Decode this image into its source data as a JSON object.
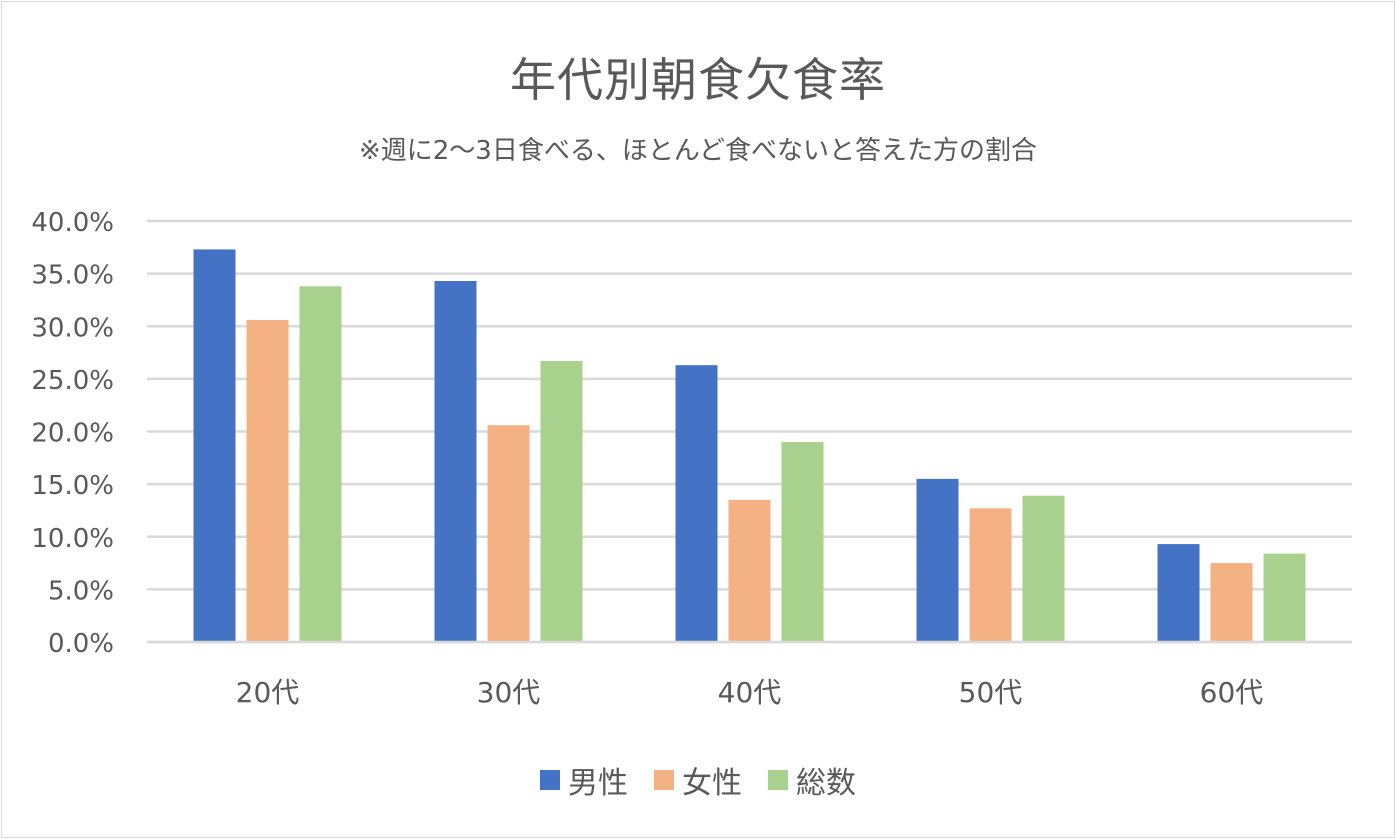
{
  "chart_data": {
    "type": "bar",
    "title": "年代別朝食欠食率",
    "subtitle": "※週に2～3日食べる、ほとんど食べないと答えた方の割合",
    "categories": [
      "20代",
      "30代",
      "40代",
      "50代",
      "60代"
    ],
    "series": [
      {
        "name": "男性",
        "color": "#4472c4",
        "values": [
          37.3,
          34.3,
          26.3,
          15.5,
          9.3
        ]
      },
      {
        "name": "女性",
        "color": "#f4b183",
        "values": [
          30.6,
          20.6,
          13.5,
          12.7,
          7.5
        ]
      },
      {
        "name": "総数",
        "color": "#a9d18e",
        "values": [
          33.8,
          26.7,
          19.0,
          13.9,
          8.4
        ]
      }
    ],
    "yticks": [
      "0.0%",
      "5.0%",
      "10.0%",
      "15.0%",
      "20.0%",
      "25.0%",
      "30.0%",
      "35.0%",
      "40.0%"
    ],
    "ylim": [
      0,
      40
    ],
    "grid": true,
    "legend_position": "bottom"
  }
}
